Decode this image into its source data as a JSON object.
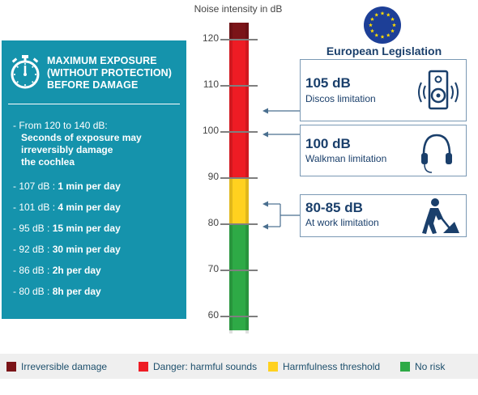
{
  "scale": {
    "title": "Noise intensity in dB",
    "ticks": [
      "120",
      "110",
      "100",
      "90",
      "80",
      "70",
      "60"
    ],
    "zones": [
      {
        "name": "Irreversible damage",
        "from": 120,
        "to": 125,
        "color": "#7b1418"
      },
      {
        "name": "Danger: harmful sounds",
        "from": 90,
        "to": 120,
        "color": "#ee1c24"
      },
      {
        "name": "Harmfulness threshold",
        "from": 80,
        "to": 90,
        "color": "#ffd11f"
      },
      {
        "name": "No risk",
        "from": 57,
        "to": 80,
        "color": "#2eaa46"
      }
    ]
  },
  "panel": {
    "title": [
      "MAXIMUM EXPOSURE",
      "(WITHOUT PROTECTION)",
      "BEFORE DAMAGE"
    ],
    "intro_prefix": "- From 120 to 140 dB:",
    "intro_lines": [
      "Seconds of exposure may",
      "irreversibly damage",
      "the cochlea"
    ],
    "items": [
      {
        "prefix": "- 107 dB : ",
        "value": "1 min per day"
      },
      {
        "prefix": "- 101 dB : ",
        "value": "4 min per day"
      },
      {
        "prefix": "- 95 dB : ",
        "value": "15 min per day"
      },
      {
        "prefix": "- 92 dB : ",
        "value": "30 min per day"
      },
      {
        "prefix": "- 86 dB : ",
        "value": "2h per day"
      },
      {
        "prefix": "- 80 dB : ",
        "value": "8h per day"
      }
    ]
  },
  "eu": {
    "title": "European Legislation",
    "boxes": [
      {
        "db": "105 dB",
        "label": "Discos limitation",
        "icon": "speaker-icon"
      },
      {
        "db": "100 dB",
        "label": "Walkman limitation",
        "icon": "headphones-icon"
      },
      {
        "db": "80-85 dB",
        "label": "At work limitation",
        "icon": "worker-icon"
      }
    ]
  },
  "legend": [
    {
      "label": "Irreversible damage",
      "color": "#7b1418"
    },
    {
      "label": "Danger: harmful sounds",
      "color": "#ee1c24"
    },
    {
      "label": "Harmfulness threshold",
      "color": "#ffd11f"
    },
    {
      "label": "No risk",
      "color": "#2eaa46"
    }
  ],
  "colors": {
    "panel": "#1593ac",
    "navy": "#1a3f6b",
    "arrow": "#4a6f8f"
  }
}
